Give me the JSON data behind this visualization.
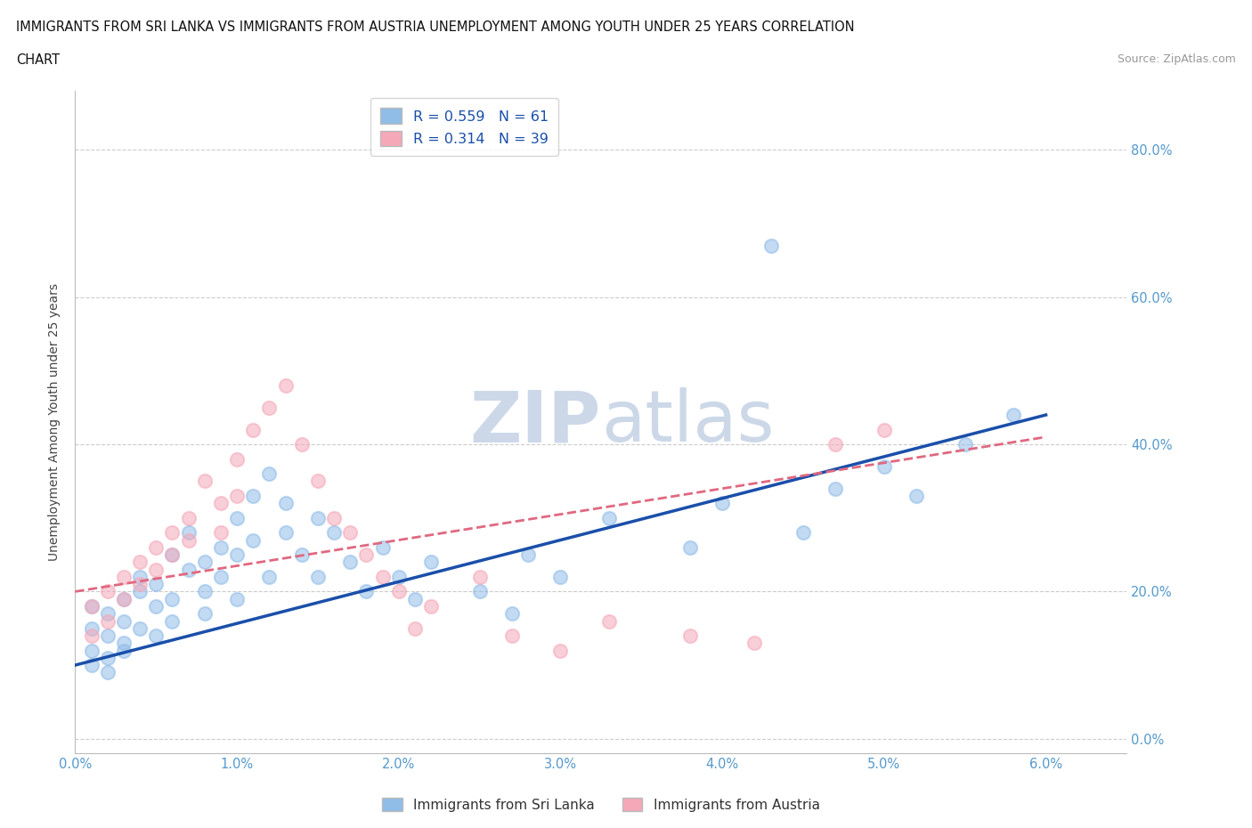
{
  "title_line1": "IMMIGRANTS FROM SRI LANKA VS IMMIGRANTS FROM AUSTRIA UNEMPLOYMENT AMONG YOUTH UNDER 25 YEARS CORRELATION",
  "title_line2": "CHART",
  "source": "Source: ZipAtlas.com",
  "ylabel": "Unemployment Among Youth under 25 years",
  "xlim": [
    0.0,
    0.065
  ],
  "ylim": [
    -0.02,
    0.88
  ],
  "xticks": [
    0.0,
    0.01,
    0.02,
    0.03,
    0.04,
    0.05,
    0.06
  ],
  "yticks": [
    0.0,
    0.2,
    0.4,
    0.6,
    0.8
  ],
  "ytick_labels": [
    "0.0%",
    "20.0%",
    "40.0%",
    "60.0%",
    "80.0%"
  ],
  "xtick_labels": [
    "0.0%",
    "1.0%",
    "2.0%",
    "3.0%",
    "4.0%",
    "5.0%",
    "6.0%"
  ],
  "sri_lanka_R": 0.559,
  "sri_lanka_N": 61,
  "austria_R": 0.314,
  "austria_N": 39,
  "sri_lanka_color": "#90bce8",
  "austria_color": "#f4a8b8",
  "sri_lanka_line_color": "#1a4faa",
  "austria_line_color": "#e06880",
  "background_color": "#ffffff",
  "grid_color": "#cccccc",
  "watermark_color": "#ccd8e8",
  "legend_label_sri_lanka": "Immigrants from Sri Lanka",
  "legend_label_austria": "Immigrants from Austria",
  "sri_lanka_x": [
    0.001,
    0.001,
    0.001,
    0.001,
    0.002,
    0.002,
    0.002,
    0.002,
    0.003,
    0.003,
    0.003,
    0.003,
    0.004,
    0.004,
    0.004,
    0.005,
    0.005,
    0.005,
    0.006,
    0.006,
    0.006,
    0.007,
    0.007,
    0.008,
    0.008,
    0.008,
    0.009,
    0.009,
    0.01,
    0.01,
    0.01,
    0.011,
    0.011,
    0.012,
    0.012,
    0.013,
    0.013,
    0.014,
    0.015,
    0.015,
    0.016,
    0.017,
    0.018,
    0.019,
    0.02,
    0.021,
    0.022,
    0.025,
    0.027,
    0.028,
    0.03,
    0.033,
    0.038,
    0.04,
    0.043,
    0.045,
    0.047,
    0.05,
    0.052,
    0.055,
    0.058
  ],
  "sri_lanka_y": [
    0.12,
    0.15,
    0.18,
    0.1,
    0.14,
    0.17,
    0.11,
    0.09,
    0.16,
    0.13,
    0.19,
    0.12,
    0.2,
    0.15,
    0.22,
    0.18,
    0.14,
    0.21,
    0.25,
    0.19,
    0.16,
    0.23,
    0.28,
    0.24,
    0.2,
    0.17,
    0.26,
    0.22,
    0.3,
    0.25,
    0.19,
    0.33,
    0.27,
    0.22,
    0.36,
    0.28,
    0.32,
    0.25,
    0.3,
    0.22,
    0.28,
    0.24,
    0.2,
    0.26,
    0.22,
    0.19,
    0.24,
    0.2,
    0.17,
    0.25,
    0.22,
    0.3,
    0.26,
    0.32,
    0.67,
    0.28,
    0.34,
    0.37,
    0.33,
    0.4,
    0.44
  ],
  "austria_x": [
    0.001,
    0.001,
    0.002,
    0.002,
    0.003,
    0.003,
    0.004,
    0.004,
    0.005,
    0.005,
    0.006,
    0.006,
    0.007,
    0.007,
    0.008,
    0.009,
    0.009,
    0.01,
    0.01,
    0.011,
    0.012,
    0.013,
    0.014,
    0.015,
    0.016,
    0.017,
    0.018,
    0.019,
    0.02,
    0.021,
    0.022,
    0.025,
    0.027,
    0.03,
    0.033,
    0.038,
    0.042,
    0.047,
    0.05
  ],
  "austria_y": [
    0.14,
    0.18,
    0.2,
    0.16,
    0.22,
    0.19,
    0.24,
    0.21,
    0.26,
    0.23,
    0.28,
    0.25,
    0.3,
    0.27,
    0.35,
    0.28,
    0.32,
    0.38,
    0.33,
    0.42,
    0.45,
    0.48,
    0.4,
    0.35,
    0.3,
    0.28,
    0.25,
    0.22,
    0.2,
    0.15,
    0.18,
    0.22,
    0.14,
    0.12,
    0.16,
    0.14,
    0.13,
    0.4,
    0.42
  ],
  "sl_trend_x0": 0.0,
  "sl_trend_y0": 0.1,
  "sl_trend_x1": 0.06,
  "sl_trend_y1": 0.44,
  "at_trend_x0": 0.0,
  "at_trend_y0": 0.2,
  "at_trend_x1": 0.06,
  "at_trend_y1": 0.41
}
